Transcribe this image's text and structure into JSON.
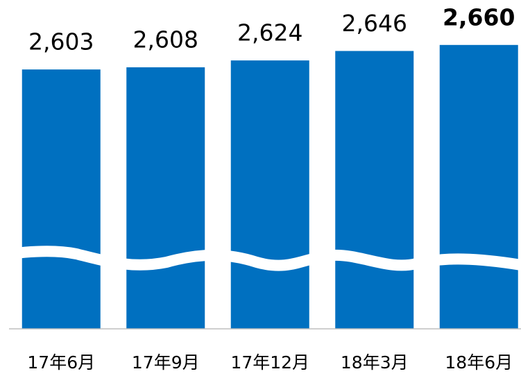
{
  "chart_data": {
    "type": "bar",
    "categories": [
      "17年6月",
      "17年9月",
      "17年12月",
      "18年3月",
      "18年6月"
    ],
    "values": [
      2603,
      2608,
      2624,
      2646,
      2660
    ],
    "value_labels": [
      "2,603",
      "2,608",
      "2,624",
      "2,646",
      "2,660"
    ],
    "color": "#0070c0",
    "ylim": [
      2000,
      2700
    ]
  }
}
